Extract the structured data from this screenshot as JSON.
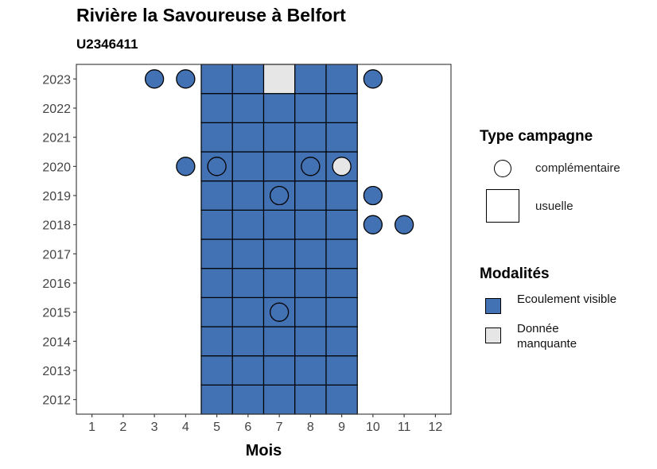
{
  "title": "Rivière la Savoureuse à Belfort",
  "subtitle": "U2346411",
  "legend": {
    "type_title": "Type campagne",
    "type_items": [
      {
        "label": "complémentaire",
        "shape": "circle"
      },
      {
        "label": "usuelle",
        "shape": "square"
      }
    ],
    "modalites_title": "Modalités",
    "modalites_items": [
      {
        "label": "Ecoulement visible",
        "color": "#4372b4"
      },
      {
        "label": "Donnée manquante",
        "color": "#e6e6e6"
      }
    ]
  },
  "chart_data": {
    "type": "heatmap",
    "xlabel": "Mois",
    "ylabel": "",
    "x_ticks": [
      1,
      2,
      3,
      4,
      5,
      6,
      7,
      8,
      9,
      10,
      11,
      12
    ],
    "y_ticks": [
      2012,
      2013,
      2014,
      2015,
      2016,
      2017,
      2018,
      2019,
      2020,
      2021,
      2022,
      2023
    ],
    "xlim": [
      0.5,
      12.5
    ],
    "ylim": [
      2011.5,
      2023.5
    ],
    "colors": {
      "Ecoulement visible": "#4372b4",
      "Donnée manquante": "#e6e6e6"
    },
    "usuelle": [
      {
        "year": 2012,
        "months": [
          5,
          6,
          7,
          8,
          9
        ],
        "modalite": [
          "Ecoulement visible",
          "Ecoulement visible",
          "Ecoulement visible",
          "Ecoulement visible",
          "Ecoulement visible"
        ]
      },
      {
        "year": 2013,
        "months": [
          5,
          6,
          7,
          8,
          9
        ],
        "modalite": [
          "Ecoulement visible",
          "Ecoulement visible",
          "Ecoulement visible",
          "Ecoulement visible",
          "Ecoulement visible"
        ]
      },
      {
        "year": 2014,
        "months": [
          5,
          6,
          7,
          8,
          9
        ],
        "modalite": [
          "Ecoulement visible",
          "Ecoulement visible",
          "Ecoulement visible",
          "Ecoulement visible",
          "Ecoulement visible"
        ]
      },
      {
        "year": 2015,
        "months": [
          5,
          6,
          7,
          8,
          9
        ],
        "modalite": [
          "Ecoulement visible",
          "Ecoulement visible",
          "Ecoulement visible",
          "Ecoulement visible",
          "Ecoulement visible"
        ]
      },
      {
        "year": 2016,
        "months": [
          5,
          6,
          7,
          8,
          9
        ],
        "modalite": [
          "Ecoulement visible",
          "Ecoulement visible",
          "Ecoulement visible",
          "Ecoulement visible",
          "Ecoulement visible"
        ]
      },
      {
        "year": 2017,
        "months": [
          5,
          6,
          7,
          8,
          9
        ],
        "modalite": [
          "Ecoulement visible",
          "Ecoulement visible",
          "Ecoulement visible",
          "Ecoulement visible",
          "Ecoulement visible"
        ]
      },
      {
        "year": 2018,
        "months": [
          5,
          6,
          7,
          8,
          9
        ],
        "modalite": [
          "Ecoulement visible",
          "Ecoulement visible",
          "Ecoulement visible",
          "Ecoulement visible",
          "Ecoulement visible"
        ]
      },
      {
        "year": 2019,
        "months": [
          5,
          6,
          7,
          8,
          9
        ],
        "modalite": [
          "Ecoulement visible",
          "Ecoulement visible",
          "Ecoulement visible",
          "Ecoulement visible",
          "Ecoulement visible"
        ]
      },
      {
        "year": 2020,
        "months": [
          5,
          6,
          7,
          8,
          9
        ],
        "modalite": [
          "Ecoulement visible",
          "Ecoulement visible",
          "Ecoulement visible",
          "Ecoulement visible",
          "Ecoulement visible"
        ]
      },
      {
        "year": 2021,
        "months": [
          5,
          6,
          7,
          8,
          9
        ],
        "modalite": [
          "Ecoulement visible",
          "Ecoulement visible",
          "Ecoulement visible",
          "Ecoulement visible",
          "Ecoulement visible"
        ]
      },
      {
        "year": 2022,
        "months": [
          5,
          6,
          7,
          8,
          9
        ],
        "modalite": [
          "Ecoulement visible",
          "Ecoulement visible",
          "Ecoulement visible",
          "Ecoulement visible",
          "Ecoulement visible"
        ]
      },
      {
        "year": 2023,
        "months": [
          5,
          6,
          7,
          8,
          9
        ],
        "modalite": [
          "Ecoulement visible",
          "Ecoulement visible",
          "Donnée manquante",
          "Ecoulement visible",
          "Ecoulement visible"
        ]
      }
    ],
    "complementaire": [
      {
        "year": 2023,
        "month": 3,
        "modalite": "Ecoulement visible"
      },
      {
        "year": 2023,
        "month": 4,
        "modalite": "Ecoulement visible"
      },
      {
        "year": 2023,
        "month": 10,
        "modalite": "Ecoulement visible"
      },
      {
        "year": 2020,
        "month": 4,
        "modalite": "Ecoulement visible"
      },
      {
        "year": 2020,
        "month": 5,
        "modalite": "Ecoulement visible"
      },
      {
        "year": 2020,
        "month": 8,
        "modalite": "Ecoulement visible"
      },
      {
        "year": 2020,
        "month": 9,
        "modalite": "Donnée manquante"
      },
      {
        "year": 2019,
        "month": 7,
        "modalite": "Ecoulement visible"
      },
      {
        "year": 2019,
        "month": 10,
        "modalite": "Ecoulement visible"
      },
      {
        "year": 2018,
        "month": 10,
        "modalite": "Ecoulement visible"
      },
      {
        "year": 2018,
        "month": 11,
        "modalite": "Ecoulement visible"
      },
      {
        "year": 2015,
        "month": 7,
        "modalite": "Ecoulement visible"
      }
    ]
  }
}
